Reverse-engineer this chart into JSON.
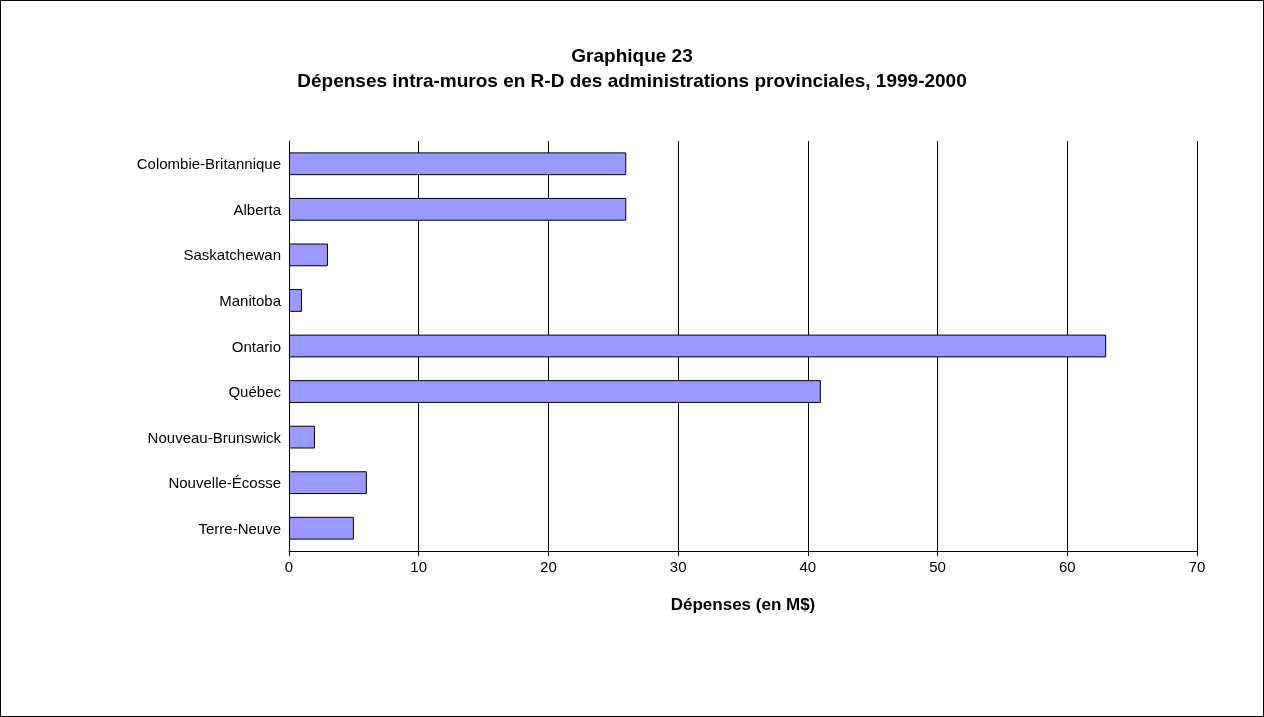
{
  "chart_data": {
    "type": "bar",
    "orientation": "horizontal",
    "title": "Graphique 23",
    "subtitle": "Dépenses intra-muros en R-D des administrations provinciales, 1999-2000",
    "categories": [
      "Colombie-Britannique",
      "Alberta",
      "Saskatchewan",
      "Manitoba",
      "Ontario",
      "Québec",
      "Nouveau-Brunswick",
      "Nouvelle-Écosse",
      "Terre-Neuve"
    ],
    "values": [
      26,
      26,
      3,
      1,
      63,
      41,
      2,
      6,
      5
    ],
    "color": "#9999ff",
    "xlabel": "Dépenses (en M$)",
    "xlim": [
      0,
      70
    ],
    "xticks": [
      0,
      10,
      20,
      30,
      40,
      50,
      60,
      70
    ],
    "grid": "x"
  }
}
